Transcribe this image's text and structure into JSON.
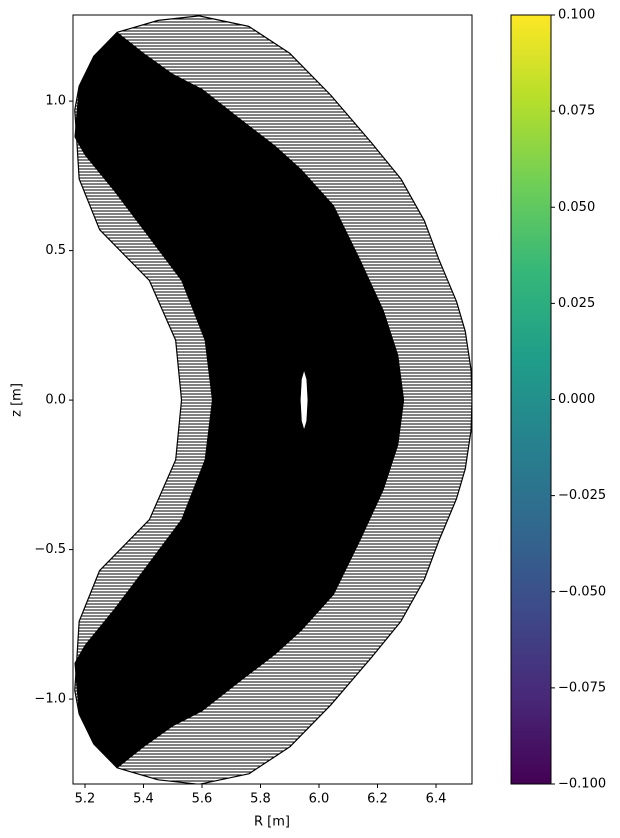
{
  "chart_data": {
    "type": "mesh",
    "xlabel": "R [m]",
    "ylabel": "z [m]",
    "xlim": [
      5.159,
      6.523
    ],
    "ylim": [
      -1.284,
      1.288
    ],
    "xticks": [
      5.2,
      5.4,
      5.6,
      5.8,
      {
        "value": 6.0,
        "label": "6.0"
      },
      6.2,
      6.4
    ],
    "yticks": [
      {
        "value": -1.0,
        "label": "−1.0"
      },
      {
        "value": -0.5,
        "label": "−0.5"
      },
      {
        "value": 0.0,
        "label": "0.0"
      },
      0.5,
      {
        "value": 1.0,
        "label": "1.0"
      }
    ],
    "series": [
      {
        "color": "#ffffff",
        "hatch": true,
        "x": [
          5.31,
          5.45,
          5.59,
          5.76,
          5.9,
          6.04,
          6.18,
          6.28,
          6.36,
          6.41,
          6.47,
          6.5,
          6.52,
          6.523,
          6.52,
          6.5,
          6.47,
          6.41,
          6.36,
          6.28,
          6.18,
          6.04,
          5.9,
          5.76,
          5.59,
          5.45,
          5.31,
          5.23,
          5.18,
          5.165,
          5.17,
          5.18,
          5.25,
          5.42,
          5.51,
          5.53,
          5.51,
          5.42,
          5.25,
          5.18,
          5.17,
          5.165,
          5.18,
          5.23
        ],
        "y": [
          1.23,
          1.27,
          1.285,
          1.25,
          1.16,
          1.02,
          0.86,
          0.74,
          0.6,
          0.47,
          0.33,
          0.23,
          0.1,
          0,
          -0.1,
          -0.23,
          -0.33,
          -0.47,
          -0.6,
          -0.74,
          -0.86,
          -1.02,
          -1.16,
          -1.25,
          -1.285,
          -1.27,
          -1.23,
          -1.15,
          -1.05,
          -0.97,
          -0.9,
          -0.74,
          -0.57,
          -0.4,
          -0.2,
          0,
          0.2,
          0.4,
          0.57,
          0.74,
          0.9,
          0.97,
          1.05,
          1.15
        ]
      },
      {
        "color": "#000000",
        "hatch": false,
        "x": [
          5.23,
          5.31,
          5.4,
          5.5,
          5.6,
          5.73,
          5.85,
          5.94,
          6.05,
          6.14,
          6.22,
          6.27,
          6.29,
          6.27,
          6.22,
          6.14,
          6.05,
          5.94,
          5.85,
          5.73,
          5.6,
          5.5,
          5.4,
          5.31,
          5.23,
          5.18,
          5.165,
          5.2,
          5.3,
          5.4,
          5.53,
          5.61,
          5.635,
          5.61,
          5.53,
          5.4,
          5.3,
          5.2,
          5.165,
          5.18
        ],
        "y": [
          1.15,
          1.23,
          1.16,
          1.09,
          1.04,
          0.94,
          0.85,
          0.77,
          0.65,
          0.47,
          0.3,
          0.15,
          0,
          -0.15,
          -0.3,
          -0.47,
          -0.65,
          -0.77,
          -0.85,
          -0.94,
          -1.04,
          -1.09,
          -1.16,
          -1.23,
          -1.15,
          -1.05,
          -0.88,
          -0.82,
          -0.7,
          -0.57,
          -0.4,
          -0.2,
          0,
          0.2,
          0.4,
          0.57,
          0.7,
          0.82,
          0.88,
          1.05
        ]
      },
      {
        "color": "#ffffff",
        "hatch": false,
        "x": [
          5.949,
          5.958,
          5.962,
          5.958,
          5.949,
          5.94,
          5.936,
          5.94
        ],
        "y": [
          0.1,
          0.07,
          0,
          -0.07,
          -0.1,
          -0.07,
          0,
          0.07
        ]
      }
    ],
    "colorbar": {
      "lim": [
        -0.1,
        0.1
      ],
      "ticks": [
        {
          "value": -0.1,
          "label": "−0.100"
        },
        {
          "value": -0.075,
          "label": "−0.075"
        },
        {
          "value": -0.05,
          "label": "−0.050"
        },
        {
          "value": -0.025,
          "label": "−0.025"
        },
        {
          "value": 0,
          "label": "0.000"
        },
        {
          "value": 0.025,
          "label": "0.025"
        },
        {
          "value": 0.05,
          "label": "0.050"
        },
        {
          "value": 0.075,
          "label": "0.075"
        },
        {
          "value": 0.1,
          "label": "0.100"
        }
      ],
      "colors": [
        "#440154",
        "#482878",
        "#3e4989",
        "#31688e",
        "#26828e",
        "#1f9e89",
        "#35b779",
        "#6ece58",
        "#b5de2b",
        "#fde725"
      ]
    }
  }
}
